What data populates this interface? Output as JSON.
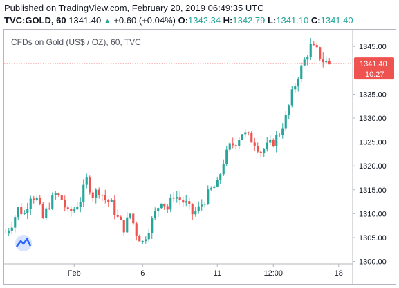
{
  "header": {
    "published": "Published on TradingView.com, February 20, 2019 06:49:35 UTC",
    "symbol": "TVC:GOLD, 60",
    "last": "1341.40",
    "change": "+0.60 (+0.04%)",
    "o_label": "O:",
    "o_value": "1342.34",
    "h_label": "H:",
    "h_value": "1342.79",
    "l_label": "L:",
    "l_value": "1341.10",
    "c_label": "C:",
    "c_value": "1341.40"
  },
  "chart_data": {
    "type": "candlestick",
    "title": "CFDs on Gold (US$ / OZ), 60, TVC",
    "y_ticks": [
      1345,
      1340,
      1335,
      1330,
      1325,
      1320,
      1315,
      1310,
      1305,
      1300
    ],
    "y_tick_labels": [
      "1345.00",
      "1340.00",
      "1335.00",
      "1330.00",
      "1325.00",
      "1320.00",
      "1315.00",
      "1310.00",
      "1305.00",
      "1300.00"
    ],
    "ylim": [
      1299.5,
      1348.5
    ],
    "x_tick_labels": [
      "Feb",
      "6",
      "11",
      "12:00",
      "18"
    ],
    "x_tick_index": [
      22,
      44,
      68,
      86,
      107
    ],
    "last_price_label": "1341.40",
    "countdown_label": "10:27",
    "last_price": 1341.4,
    "colors": {
      "up": "#26a69a",
      "down": "#ef5350",
      "price_line": "#ef5350",
      "logo": "#2962ff"
    },
    "close_path": [
      [
        0,
        1306
      ],
      [
        2,
        1308
      ],
      [
        4,
        1311
      ],
      [
        6,
        1310
      ],
      [
        8,
        1314
      ],
      [
        10,
        1313
      ],
      [
        12,
        1309
      ],
      [
        14,
        1312
      ],
      [
        16,
        1314
      ],
      [
        18,
        1313
      ],
      [
        20,
        1310
      ],
      [
        22,
        1311
      ],
      [
        24,
        1313
      ],
      [
        26,
        1317
      ],
      [
        28,
        1314
      ],
      [
        30,
        1315
      ],
      [
        32,
        1313
      ],
      [
        34,
        1312
      ],
      [
        36,
        1309
      ],
      [
        38,
        1307
      ],
      [
        40,
        1310
      ],
      [
        42,
        1306
      ],
      [
        44,
        1304
      ],
      [
        46,
        1307
      ],
      [
        48,
        1310
      ],
      [
        50,
        1313
      ],
      [
        52,
        1311
      ],
      [
        54,
        1314
      ],
      [
        56,
        1313
      ],
      [
        58,
        1312
      ],
      [
        60,
        1310
      ],
      [
        62,
        1311
      ],
      [
        64,
        1313
      ],
      [
        66,
        1315
      ],
      [
        68,
        1316
      ],
      [
        70,
        1321
      ],
      [
        72,
        1324
      ],
      [
        74,
        1325
      ],
      [
        76,
        1327
      ],
      [
        78,
        1326
      ],
      [
        80,
        1325
      ],
      [
        82,
        1323
      ],
      [
        84,
        1324
      ],
      [
        86,
        1325
      ],
      [
        88,
        1327
      ],
      [
        90,
        1330
      ],
      [
        92,
        1335
      ],
      [
        94,
        1339
      ],
      [
        96,
        1342
      ],
      [
        98,
        1345
      ],
      [
        100,
        1344
      ],
      [
        102,
        1342
      ],
      [
        104,
        1341.4
      ]
    ]
  }
}
